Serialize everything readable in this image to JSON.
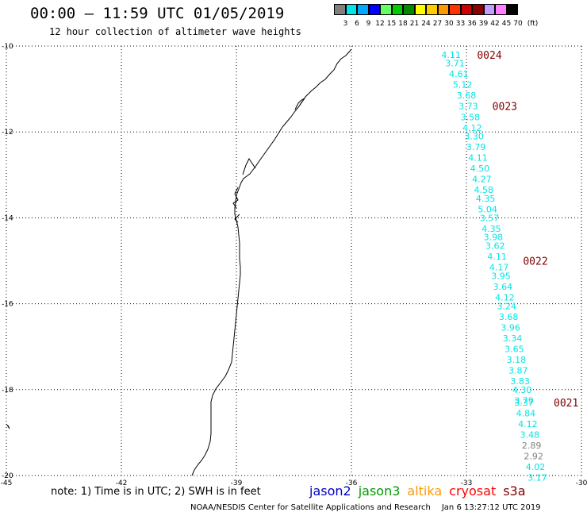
{
  "title": "00:00 – 11:59 UTC 01/05/2019",
  "subtitle": "12 hour collection of altimeter wave heights",
  "color_scale": {
    "labels": [
      "3",
      "6",
      "9",
      "12",
      "15",
      "18",
      "21",
      "24",
      "27",
      "30",
      "33",
      "36",
      "39",
      "42",
      "45",
      "70"
    ],
    "unit": "(ft)",
    "colors": [
      "#808080",
      "#00e5e5",
      "#00a8ff",
      "#0000ff",
      "#66ff66",
      "#00cc00",
      "#008800",
      "#ffff00",
      "#ffcc00",
      "#ff9900",
      "#ff3300",
      "#cc0000",
      "#880000",
      "#c0a0ff",
      "#ff80ff",
      "#000000"
    ]
  },
  "axes": {
    "lon_ticks": [
      "-45",
      "-42",
      "-39",
      "-36",
      "-33",
      "-30"
    ],
    "lat_ticks": [
      "-10",
      "-12",
      "-14",
      "-16",
      "-18",
      "-20"
    ],
    "lon_range": [
      -45,
      -30
    ],
    "lat_range": [
      -20,
      -10
    ],
    "grid": true
  },
  "chart_data": {
    "type": "scatter",
    "x_label": "",
    "y_label": "",
    "points": [
      {
        "lon": -33.4,
        "lat": -10.2,
        "value": "4.11",
        "color": "#00e5e5"
      },
      {
        "lon": -33.3,
        "lat": -10.4,
        "value": "3.71",
        "color": "#00e5e5"
      },
      {
        "lon": -33.2,
        "lat": -10.65,
        "value": "4.61",
        "color": "#00e5e5"
      },
      {
        "lon": -33.1,
        "lat": -10.9,
        "value": "5.12",
        "color": "#00e5e5"
      },
      {
        "lon": -33.0,
        "lat": -11.15,
        "value": "3.68",
        "color": "#00e5e5"
      },
      {
        "lon": -32.95,
        "lat": -11.4,
        "value": "3.73",
        "color": "#00e5e5"
      },
      {
        "lon": -32.9,
        "lat": -11.65,
        "value": "3.58",
        "color": "#00e5e5"
      },
      {
        "lon": -32.85,
        "lat": -11.9,
        "value": "4.12",
        "color": "#00e5e5"
      },
      {
        "lon": -32.8,
        "lat": -12.1,
        "value": "3.30",
        "color": "#00e5e5"
      },
      {
        "lon": -32.75,
        "lat": -12.35,
        "value": "3.79",
        "color": "#00e5e5"
      },
      {
        "lon": -32.7,
        "lat": -12.6,
        "value": "4.11",
        "color": "#00e5e5"
      },
      {
        "lon": -32.65,
        "lat": -12.85,
        "value": "4.50",
        "color": "#00e5e5"
      },
      {
        "lon": -32.6,
        "lat": -13.1,
        "value": "4.27",
        "color": "#00e5e5"
      },
      {
        "lon": -32.55,
        "lat": -13.35,
        "value": "4.58",
        "color": "#00e5e5"
      },
      {
        "lon": -32.5,
        "lat": -13.55,
        "value": "4.35",
        "color": "#00e5e5"
      },
      {
        "lon": -32.45,
        "lat": -13.8,
        "value": "5.04",
        "color": "#00e5e5"
      },
      {
        "lon": -32.4,
        "lat": -14.0,
        "value": "3.57",
        "color": "#00e5e5"
      },
      {
        "lon": -32.35,
        "lat": -14.25,
        "value": "4.35",
        "color": "#00e5e5"
      },
      {
        "lon": -32.3,
        "lat": -14.45,
        "value": "3.98",
        "color": "#00e5e5"
      },
      {
        "lon": -32.25,
        "lat": -14.65,
        "value": "3.62",
        "color": "#00e5e5"
      },
      {
        "lon": -32.2,
        "lat": -14.9,
        "value": "4.11",
        "color": "#00e5e5"
      },
      {
        "lon": -32.15,
        "lat": -15.15,
        "value": "4.17",
        "color": "#00e5e5"
      },
      {
        "lon": -32.1,
        "lat": -15.35,
        "value": "3.95",
        "color": "#00e5e5"
      },
      {
        "lon": -32.05,
        "lat": -15.6,
        "value": "3.64",
        "color": "#00e5e5"
      },
      {
        "lon": -32.0,
        "lat": -15.85,
        "value": "4.12",
        "color": "#00e5e5"
      },
      {
        "lon": -31.95,
        "lat": -16.05,
        "value": "3.24",
        "color": "#00e5e5"
      },
      {
        "lon": -31.9,
        "lat": -16.3,
        "value": "3.68",
        "color": "#00e5e5"
      },
      {
        "lon": -31.85,
        "lat": -16.55,
        "value": "3.96",
        "color": "#00e5e5"
      },
      {
        "lon": -31.8,
        "lat": -16.8,
        "value": "3.34",
        "color": "#00e5e5"
      },
      {
        "lon": -31.75,
        "lat": -17.05,
        "value": "3.65",
        "color": "#00e5e5"
      },
      {
        "lon": -31.7,
        "lat": -17.3,
        "value": "3.18",
        "color": "#00e5e5"
      },
      {
        "lon": -31.65,
        "lat": -17.55,
        "value": "3.87",
        "color": "#00e5e5"
      },
      {
        "lon": -31.6,
        "lat": -17.8,
        "value": "3.83",
        "color": "#00e5e5"
      },
      {
        "lon": -31.55,
        "lat": -18.0,
        "value": "4.30",
        "color": "#00e5e5"
      },
      {
        "lon": -31.5,
        "lat": -18.25,
        "value": "3.79",
        "color": "#00e5e5"
      },
      {
        "lon": -31.5,
        "lat": -18.3,
        "value": "3.37",
        "color": "#00e5e5"
      },
      {
        "lon": -31.45,
        "lat": -18.55,
        "value": "4.84",
        "color": "#00e5e5"
      },
      {
        "lon": -31.4,
        "lat": -18.8,
        "value": "4.12",
        "color": "#00e5e5"
      },
      {
        "lon": -31.35,
        "lat": -19.05,
        "value": "3.48",
        "color": "#00e5e5"
      },
      {
        "lon": -31.3,
        "lat": -19.3,
        "value": "2.89",
        "color": "#808080"
      },
      {
        "lon": -31.25,
        "lat": -19.55,
        "value": "2.92",
        "color": "#808080"
      },
      {
        "lon": -31.2,
        "lat": -19.8,
        "value": "4.02",
        "color": "#00e5e5"
      },
      {
        "lon": -31.15,
        "lat": -20.05,
        "value": "3.17",
        "color": "#00e5e5"
      }
    ],
    "time_labels": [
      {
        "lon": -32.4,
        "lat": -10.2,
        "text": "0024"
      },
      {
        "lon": -32.0,
        "lat": -11.4,
        "text": "0023"
      },
      {
        "lon": -31.2,
        "lat": -15.0,
        "text": "0022"
      },
      {
        "lon": -30.4,
        "lat": -18.3,
        "text": "0021"
      }
    ],
    "time_label_color": "#800000"
  },
  "note": "note: 1) Time is in UTC; 2) SWH is in feet",
  "satellites": [
    {
      "name": "jason2",
      "color": "#0000cc"
    },
    {
      "name": "jason3",
      "color": "#009900"
    },
    {
      "name": "altika",
      "color": "#ff9900"
    },
    {
      "name": "cryosat",
      "color": "#ff0000"
    },
    {
      "name": "s3a",
      "color": "#800000"
    }
  ],
  "credit": "NOAA/NESDIS Center for Satellite Applications and Research",
  "credit_time": "Jan  6 13:27:12 UTC 2019"
}
